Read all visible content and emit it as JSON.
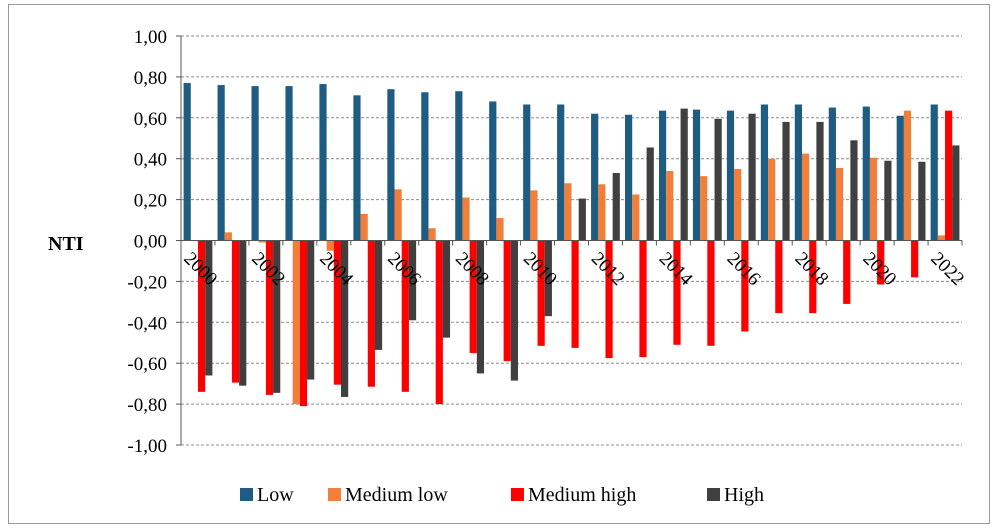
{
  "chart_data": {
    "type": "bar",
    "ylabel": "NTI",
    "xlabel": "",
    "ylim": [
      -1.0,
      1.0
    ],
    "yticks": [
      "1,00",
      "0,80",
      "0,60",
      "0,40",
      "0,20",
      "0,00",
      "-0,20",
      "-0,40",
      "-0,60",
      "-0,80",
      "-1,00"
    ],
    "ytick_values": [
      1.0,
      0.8,
      0.6,
      0.4,
      0.2,
      0.0,
      -0.2,
      -0.4,
      -0.6,
      -0.8,
      -1.0
    ],
    "grid": "horizontal dashed",
    "legend_position": "bottom",
    "x": [
      2000,
      2001,
      2002,
      2003,
      2004,
      2005,
      2006,
      2007,
      2008,
      2009,
      2010,
      2011,
      2012,
      2013,
      2014,
      2015,
      2016,
      2017,
      2018,
      2019,
      2020,
      2021,
      2022
    ],
    "xtick_labels": [
      "2000",
      "2002",
      "2004",
      "2006",
      "2008",
      "2010",
      "2012",
      "2014",
      "2016",
      "2018",
      "2020",
      "2022"
    ],
    "series": [
      {
        "name": "Low",
        "color": "#1f5c82",
        "values": [
          0.77,
          0.76,
          0.755,
          0.755,
          0.765,
          0.71,
          0.74,
          0.725,
          0.73,
          0.68,
          0.665,
          0.665,
          0.62,
          0.615,
          0.635,
          0.64,
          0.635,
          0.665,
          0.665,
          0.65,
          0.655,
          0.61,
          0.665
        ]
      },
      {
        "name": "Medium low",
        "color": "#f07f3b",
        "values": [
          0.0,
          0.04,
          -0.01,
          -0.8,
          -0.05,
          0.13,
          0.25,
          0.06,
          0.21,
          0.11,
          0.245,
          0.28,
          0.275,
          0.225,
          0.34,
          0.315,
          0.35,
          0.4,
          0.425,
          0.355,
          0.405,
          0.635,
          0.025
        ]
      },
      {
        "name": "Medium high",
        "color": "#ff0000",
        "values": [
          -0.74,
          -0.695,
          -0.755,
          -0.81,
          -0.705,
          -0.715,
          -0.74,
          -0.8,
          -0.55,
          -0.59,
          -0.515,
          -0.525,
          -0.575,
          -0.57,
          -0.51,
          -0.515,
          -0.445,
          -0.355,
          -0.355,
          -0.31,
          -0.215,
          -0.18,
          0.635
        ]
      },
      {
        "name": "High",
        "color": "#404040",
        "values": [
          -0.66,
          -0.71,
          -0.745,
          -0.68,
          -0.765,
          -0.535,
          -0.39,
          -0.475,
          -0.65,
          -0.685,
          -0.37,
          0.205,
          0.33,
          0.455,
          0.645,
          0.595,
          0.62,
          0.58,
          0.58,
          0.49,
          0.39,
          0.385,
          0.465
        ]
      }
    ]
  }
}
